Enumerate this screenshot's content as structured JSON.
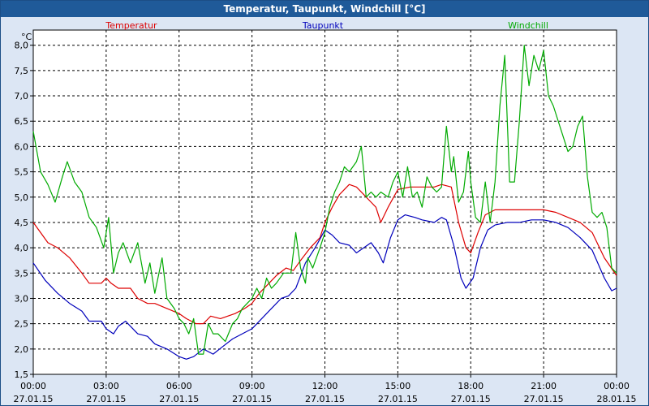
{
  "window": {
    "title": "Temperatur, Taupunkt, Windchill [°C]"
  },
  "colors": {
    "temperatur": "#dd0000",
    "taupunkt": "#0000bb",
    "windchill": "#00aa00",
    "grid": "#000000",
    "plot_bg": "#ffffff",
    "title_bg": "#1f5a99"
  },
  "chart_data": {
    "type": "line",
    "title": "Temperatur, Taupunkt, Windchill [°C]",
    "ylabel": "°C",
    "xlabel": "",
    "xlim": [
      0,
      24
    ],
    "ylim": [
      1.5,
      8.3
    ],
    "grid": true,
    "legend_position": "top",
    "yticks": [
      1.5,
      2.0,
      2.5,
      3.0,
      3.5,
      4.0,
      4.5,
      5.0,
      5.5,
      6.0,
      6.5,
      7.0,
      7.5,
      8.0
    ],
    "ytick_labels": [
      "1,5",
      "2,0",
      "2,5",
      "3,0",
      "3,5",
      "4,0",
      "4,5",
      "5,0",
      "5,5",
      "6,0",
      "6,5",
      "7,0",
      "7,5",
      "8,0"
    ],
    "xticks": [
      {
        "x": 0,
        "time": "00:00",
        "date": "27.01.15"
      },
      {
        "x": 3,
        "time": "03:00",
        "date": "27.01.15"
      },
      {
        "x": 6,
        "time": "06:00",
        "date": "27.01.15"
      },
      {
        "x": 9,
        "time": "09:00",
        "date": "27.01.15"
      },
      {
        "x": 12,
        "time": "12:00",
        "date": "27.01.15"
      },
      {
        "x": 15,
        "time": "15:00",
        "date": "27.01.15"
      },
      {
        "x": 18,
        "time": "18:00",
        "date": "27.01.15"
      },
      {
        "x": 21,
        "time": "21:00",
        "date": "27.01.15"
      },
      {
        "x": 24,
        "time": "00:00",
        "date": "28.01.15"
      }
    ],
    "series": [
      {
        "name": "Temperatur",
        "color": "#dd0000",
        "points": [
          [
            0,
            4.5
          ],
          [
            0.6,
            4.1
          ],
          [
            1,
            4.0
          ],
          [
            1.5,
            3.8
          ],
          [
            2,
            3.5
          ],
          [
            2.3,
            3.3
          ],
          [
            2.8,
            3.3
          ],
          [
            3,
            3.4
          ],
          [
            3.2,
            3.3
          ],
          [
            3.5,
            3.2
          ],
          [
            4,
            3.2
          ],
          [
            4.3,
            3.0
          ],
          [
            4.7,
            2.9
          ],
          [
            5,
            2.9
          ],
          [
            5.5,
            2.8
          ],
          [
            6,
            2.7
          ],
          [
            6.3,
            2.6
          ],
          [
            6.7,
            2.5
          ],
          [
            7,
            2.5
          ],
          [
            7.3,
            2.65
          ],
          [
            7.7,
            2.6
          ],
          [
            8,
            2.65
          ],
          [
            8.3,
            2.7
          ],
          [
            8.7,
            2.8
          ],
          [
            9,
            2.9
          ],
          [
            9.3,
            3.1
          ],
          [
            9.7,
            3.3
          ],
          [
            10,
            3.45
          ],
          [
            10.4,
            3.6
          ],
          [
            10.7,
            3.55
          ],
          [
            11,
            3.75
          ],
          [
            11.4,
            4.0
          ],
          [
            11.8,
            4.2
          ],
          [
            12,
            4.5
          ],
          [
            12.3,
            4.8
          ],
          [
            12.6,
            5.05
          ],
          [
            13,
            5.25
          ],
          [
            13.3,
            5.2
          ],
          [
            13.6,
            5.05
          ],
          [
            13.9,
            4.9
          ],
          [
            14.1,
            4.8
          ],
          [
            14.3,
            4.5
          ],
          [
            14.6,
            4.8
          ],
          [
            15,
            5.15
          ],
          [
            15.5,
            5.2
          ],
          [
            16,
            5.2
          ],
          [
            16.5,
            5.2
          ],
          [
            16.8,
            5.25
          ],
          [
            17.2,
            5.2
          ],
          [
            17.5,
            4.5
          ],
          [
            17.8,
            4.0
          ],
          [
            18,
            3.9
          ],
          [
            18.3,
            4.3
          ],
          [
            18.6,
            4.65
          ],
          [
            19,
            4.75
          ],
          [
            20,
            4.75
          ],
          [
            21,
            4.75
          ],
          [
            21.5,
            4.7
          ],
          [
            22,
            4.6
          ],
          [
            22.5,
            4.5
          ],
          [
            23,
            4.3
          ],
          [
            23.5,
            3.8
          ],
          [
            24,
            3.45
          ]
        ]
      },
      {
        "name": "Taupunkt",
        "color": "#0000bb",
        "points": [
          [
            0,
            3.7
          ],
          [
            0.5,
            3.35
          ],
          [
            1,
            3.1
          ],
          [
            1.5,
            2.9
          ],
          [
            2,
            2.75
          ],
          [
            2.3,
            2.55
          ],
          [
            2.8,
            2.55
          ],
          [
            3,
            2.4
          ],
          [
            3.3,
            2.3
          ],
          [
            3.5,
            2.45
          ],
          [
            3.8,
            2.55
          ],
          [
            4,
            2.45
          ],
          [
            4.3,
            2.3
          ],
          [
            4.7,
            2.25
          ],
          [
            5,
            2.1
          ],
          [
            5.5,
            2.0
          ],
          [
            6,
            1.85
          ],
          [
            6.3,
            1.8
          ],
          [
            6.6,
            1.85
          ],
          [
            7,
            2.0
          ],
          [
            7.4,
            1.9
          ],
          [
            7.8,
            2.05
          ],
          [
            8.2,
            2.2
          ],
          [
            8.6,
            2.3
          ],
          [
            9,
            2.4
          ],
          [
            9.4,
            2.6
          ],
          [
            9.8,
            2.8
          ],
          [
            10.2,
            3.0
          ],
          [
            10.5,
            3.05
          ],
          [
            10.8,
            3.2
          ],
          [
            11.2,
            3.7
          ],
          [
            11.6,
            4.0
          ],
          [
            12,
            4.35
          ],
          [
            12.3,
            4.25
          ],
          [
            12.6,
            4.1
          ],
          [
            13,
            4.05
          ],
          [
            13.3,
            3.9
          ],
          [
            13.6,
            4.0
          ],
          [
            13.9,
            4.1
          ],
          [
            14.2,
            3.9
          ],
          [
            14.4,
            3.7
          ],
          [
            14.7,
            4.2
          ],
          [
            15,
            4.55
          ],
          [
            15.3,
            4.65
          ],
          [
            15.7,
            4.6
          ],
          [
            16,
            4.55
          ],
          [
            16.5,
            4.5
          ],
          [
            16.8,
            4.6
          ],
          [
            17,
            4.55
          ],
          [
            17.3,
            4.05
          ],
          [
            17.6,
            3.4
          ],
          [
            17.8,
            3.2
          ],
          [
            18.1,
            3.4
          ],
          [
            18.4,
            4.0
          ],
          [
            18.7,
            4.35
          ],
          [
            19,
            4.45
          ],
          [
            19.5,
            4.5
          ],
          [
            20,
            4.5
          ],
          [
            20.5,
            4.55
          ],
          [
            21,
            4.55
          ],
          [
            21.5,
            4.5
          ],
          [
            22,
            4.4
          ],
          [
            22.5,
            4.2
          ],
          [
            23,
            3.95
          ],
          [
            23.5,
            3.4
          ],
          [
            23.8,
            3.15
          ],
          [
            24,
            3.2
          ]
        ]
      },
      {
        "name": "Windchill",
        "color": "#00aa00",
        "points": [
          [
            0,
            6.3
          ],
          [
            0.3,
            5.5
          ],
          [
            0.6,
            5.25
          ],
          [
            0.9,
            4.9
          ],
          [
            1.2,
            5.4
          ],
          [
            1.4,
            5.7
          ],
          [
            1.7,
            5.3
          ],
          [
            2,
            5.1
          ],
          [
            2.3,
            4.6
          ],
          [
            2.6,
            4.4
          ],
          [
            2.9,
            4.0
          ],
          [
            3.1,
            4.6
          ],
          [
            3.3,
            3.5
          ],
          [
            3.5,
            3.9
          ],
          [
            3.7,
            4.1
          ],
          [
            4,
            3.7
          ],
          [
            4.3,
            4.1
          ],
          [
            4.6,
            3.3
          ],
          [
            4.8,
            3.7
          ],
          [
            5,
            3.1
          ],
          [
            5.3,
            3.8
          ],
          [
            5.5,
            3.0
          ],
          [
            5.8,
            2.8
          ],
          [
            6,
            2.6
          ],
          [
            6.2,
            2.5
          ],
          [
            6.4,
            2.3
          ],
          [
            6.6,
            2.6
          ],
          [
            6.8,
            1.9
          ],
          [
            7,
            1.9
          ],
          [
            7.2,
            2.5
          ],
          [
            7.4,
            2.3
          ],
          [
            7.6,
            2.3
          ],
          [
            7.9,
            2.15
          ],
          [
            8.2,
            2.5
          ],
          [
            8.4,
            2.6
          ],
          [
            8.6,
            2.8
          ],
          [
            8.8,
            2.9
          ],
          [
            9,
            3.0
          ],
          [
            9.2,
            3.2
          ],
          [
            9.4,
            3.0
          ],
          [
            9.6,
            3.4
          ],
          [
            9.8,
            3.2
          ],
          [
            10,
            3.3
          ],
          [
            10.3,
            3.5
          ],
          [
            10.6,
            3.5
          ],
          [
            10.8,
            4.3
          ],
          [
            11,
            3.6
          ],
          [
            11.2,
            3.3
          ],
          [
            11.3,
            3.8
          ],
          [
            11.5,
            3.6
          ],
          [
            11.8,
            4.0
          ],
          [
            12,
            4.3
          ],
          [
            12.2,
            4.8
          ],
          [
            12.4,
            5.1
          ],
          [
            12.6,
            5.3
          ],
          [
            12.8,
            5.6
          ],
          [
            13,
            5.5
          ],
          [
            13.3,
            5.7
          ],
          [
            13.5,
            6.0
          ],
          [
            13.7,
            5.0
          ],
          [
            13.9,
            5.1
          ],
          [
            14.1,
            5.0
          ],
          [
            14.3,
            5.1
          ],
          [
            14.6,
            5.0
          ],
          [
            14.8,
            5.3
          ],
          [
            15,
            5.5
          ],
          [
            15.2,
            5.0
          ],
          [
            15.4,
            5.6
          ],
          [
            15.6,
            5.0
          ],
          [
            15.8,
            5.1
          ],
          [
            16,
            4.8
          ],
          [
            16.2,
            5.4
          ],
          [
            16.4,
            5.2
          ],
          [
            16.6,
            5.1
          ],
          [
            16.8,
            5.2
          ],
          [
            17,
            6.4
          ],
          [
            17.2,
            5.5
          ],
          [
            17.3,
            5.8
          ],
          [
            17.5,
            4.9
          ],
          [
            17.7,
            5.1
          ],
          [
            17.9,
            5.9
          ],
          [
            18,
            5.3
          ],
          [
            18.2,
            4.6
          ],
          [
            18.4,
            4.5
          ],
          [
            18.6,
            5.3
          ],
          [
            18.8,
            4.5
          ],
          [
            19,
            5.3
          ],
          [
            19.2,
            6.8
          ],
          [
            19.4,
            7.8
          ],
          [
            19.6,
            5.3
          ],
          [
            19.8,
            5.3
          ],
          [
            20,
            6.5
          ],
          [
            20.2,
            8.0
          ],
          [
            20.4,
            7.2
          ],
          [
            20.6,
            7.8
          ],
          [
            20.8,
            7.5
          ],
          [
            21,
            7.9
          ],
          [
            21.2,
            7.0
          ],
          [
            21.4,
            6.8
          ],
          [
            21.6,
            6.5
          ],
          [
            21.8,
            6.2
          ],
          [
            22,
            5.9
          ],
          [
            22.2,
            6.0
          ],
          [
            22.4,
            6.4
          ],
          [
            22.6,
            6.6
          ],
          [
            22.8,
            5.4
          ],
          [
            23,
            4.7
          ],
          [
            23.2,
            4.6
          ],
          [
            23.4,
            4.7
          ],
          [
            23.6,
            4.4
          ],
          [
            23.8,
            3.6
          ],
          [
            24,
            3.5
          ]
        ]
      }
    ]
  }
}
